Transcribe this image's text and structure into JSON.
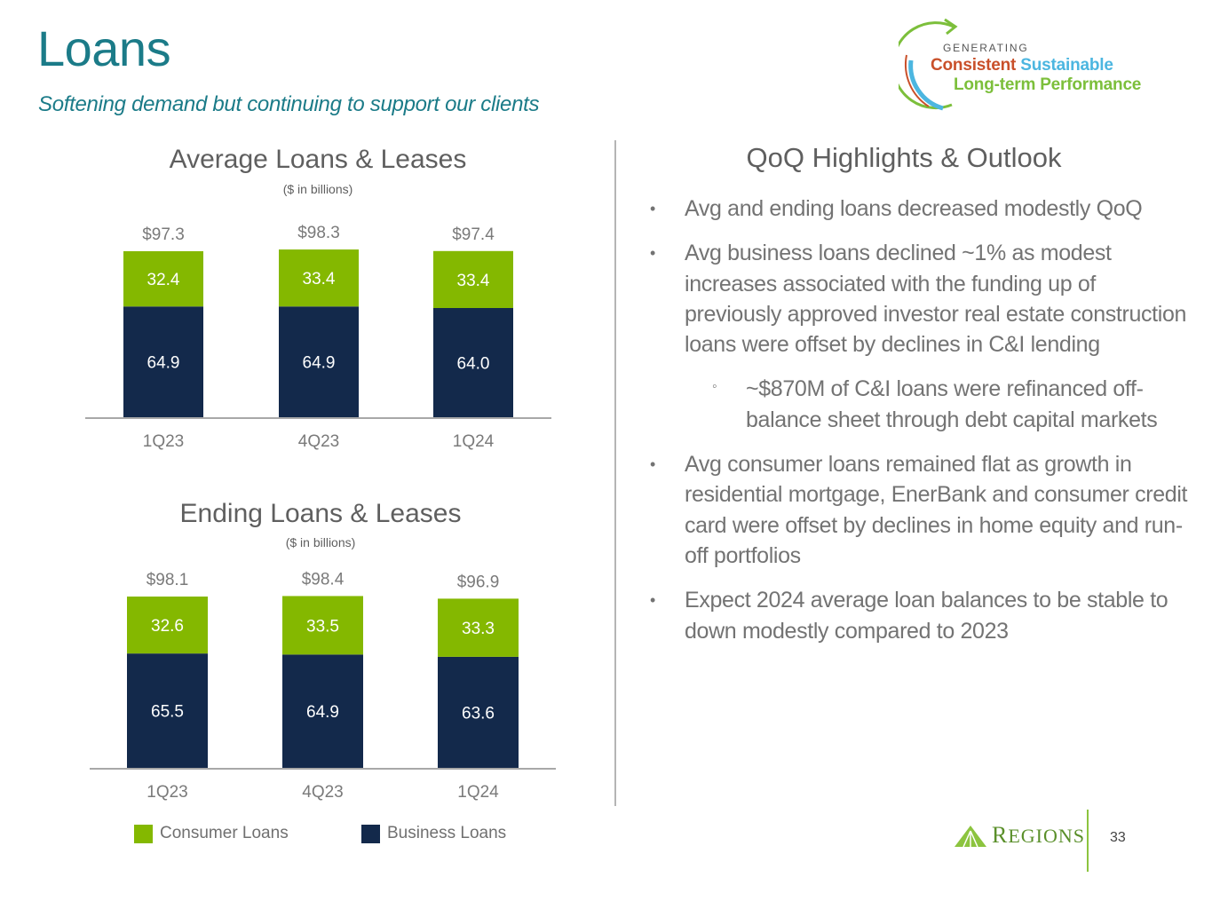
{
  "page": {
    "title": "Loans",
    "subtitle": "Softening demand but continuing to support our clients",
    "page_number": "33"
  },
  "logo": {
    "line1": "GENERATING",
    "word_consistent": "Consistent",
    "word_sustainable": "Sustainable",
    "line3": "Long-term Performance",
    "colors": {
      "consistent": "#c9502a",
      "sustainable": "#4cb6e0",
      "longterm": "#7cbf3b"
    }
  },
  "brand": {
    "name": "Regions",
    "name_display_first": "R",
    "name_display_rest": "EGIONS"
  },
  "legend": [
    {
      "label": "Consumer Loans",
      "color": "#84b800"
    },
    {
      "label": "Business Loans",
      "color": "#13294b"
    }
  ],
  "chart_data": [
    {
      "type": "bar",
      "stacked": true,
      "title": "Average Loans & Leases",
      "subtitle": "($ in billions)",
      "categories": [
        "1Q23",
        "4Q23",
        "1Q24"
      ],
      "series": [
        {
          "name": "Business Loans",
          "values": [
            64.9,
            64.9,
            64.0
          ],
          "labels": [
            "64.9",
            "64.9",
            "64.0"
          ],
          "color": "#13294b"
        },
        {
          "name": "Consumer Loans",
          "values": [
            32.4,
            33.4,
            33.4
          ],
          "labels": [
            "32.4",
            "33.4",
            "33.4"
          ],
          "color": "#84b800"
        }
      ],
      "totals": [
        "$97.3",
        "$98.3",
        "$97.4"
      ],
      "xlabel": "",
      "ylabel": "",
      "ylim": [
        0,
        100
      ],
      "grid": false,
      "legend": "bottom"
    },
    {
      "type": "bar",
      "stacked": true,
      "title": "Ending Loans & Leases",
      "subtitle": "($ in billions)",
      "categories": [
        "1Q23",
        "4Q23",
        "1Q24"
      ],
      "series": [
        {
          "name": "Business Loans",
          "values": [
            65.5,
            64.9,
            63.6
          ],
          "labels": [
            "65.5",
            "64.9",
            "63.6"
          ],
          "color": "#13294b"
        },
        {
          "name": "Consumer Loans",
          "values": [
            32.6,
            33.5,
            33.3
          ],
          "labels": [
            "32.6",
            "33.5",
            "33.3"
          ],
          "color": "#84b800"
        }
      ],
      "totals": [
        "$98.1",
        "$98.4",
        "$96.9"
      ],
      "xlabel": "",
      "ylabel": "",
      "ylim": [
        0,
        100
      ],
      "grid": false,
      "legend": "bottom"
    }
  ],
  "highlights": {
    "title": "QoQ Highlights & Outlook",
    "bullet_glyph": "•",
    "sub_bullet_glyph": "◦",
    "items": [
      {
        "text": "Avg and ending loans decreased modestly QoQ"
      },
      {
        "text": "Avg business loans declined ~1% as modest increases associated with the funding up of previously approved investor real estate construction loans were offset by declines in C&I lending"
      },
      {
        "text": "~$870M of C&I loans were refinanced off-balance sheet through debt capital markets"
      },
      {
        "text": "Avg consumer loans remained flat as growth in residential mortgage, EnerBank and consumer credit card were offset by declines in home equity and run-off portfolios"
      },
      {
        "text": "Expect 2024 average loan balances to be stable to down modestly compared to 2023"
      }
    ]
  }
}
